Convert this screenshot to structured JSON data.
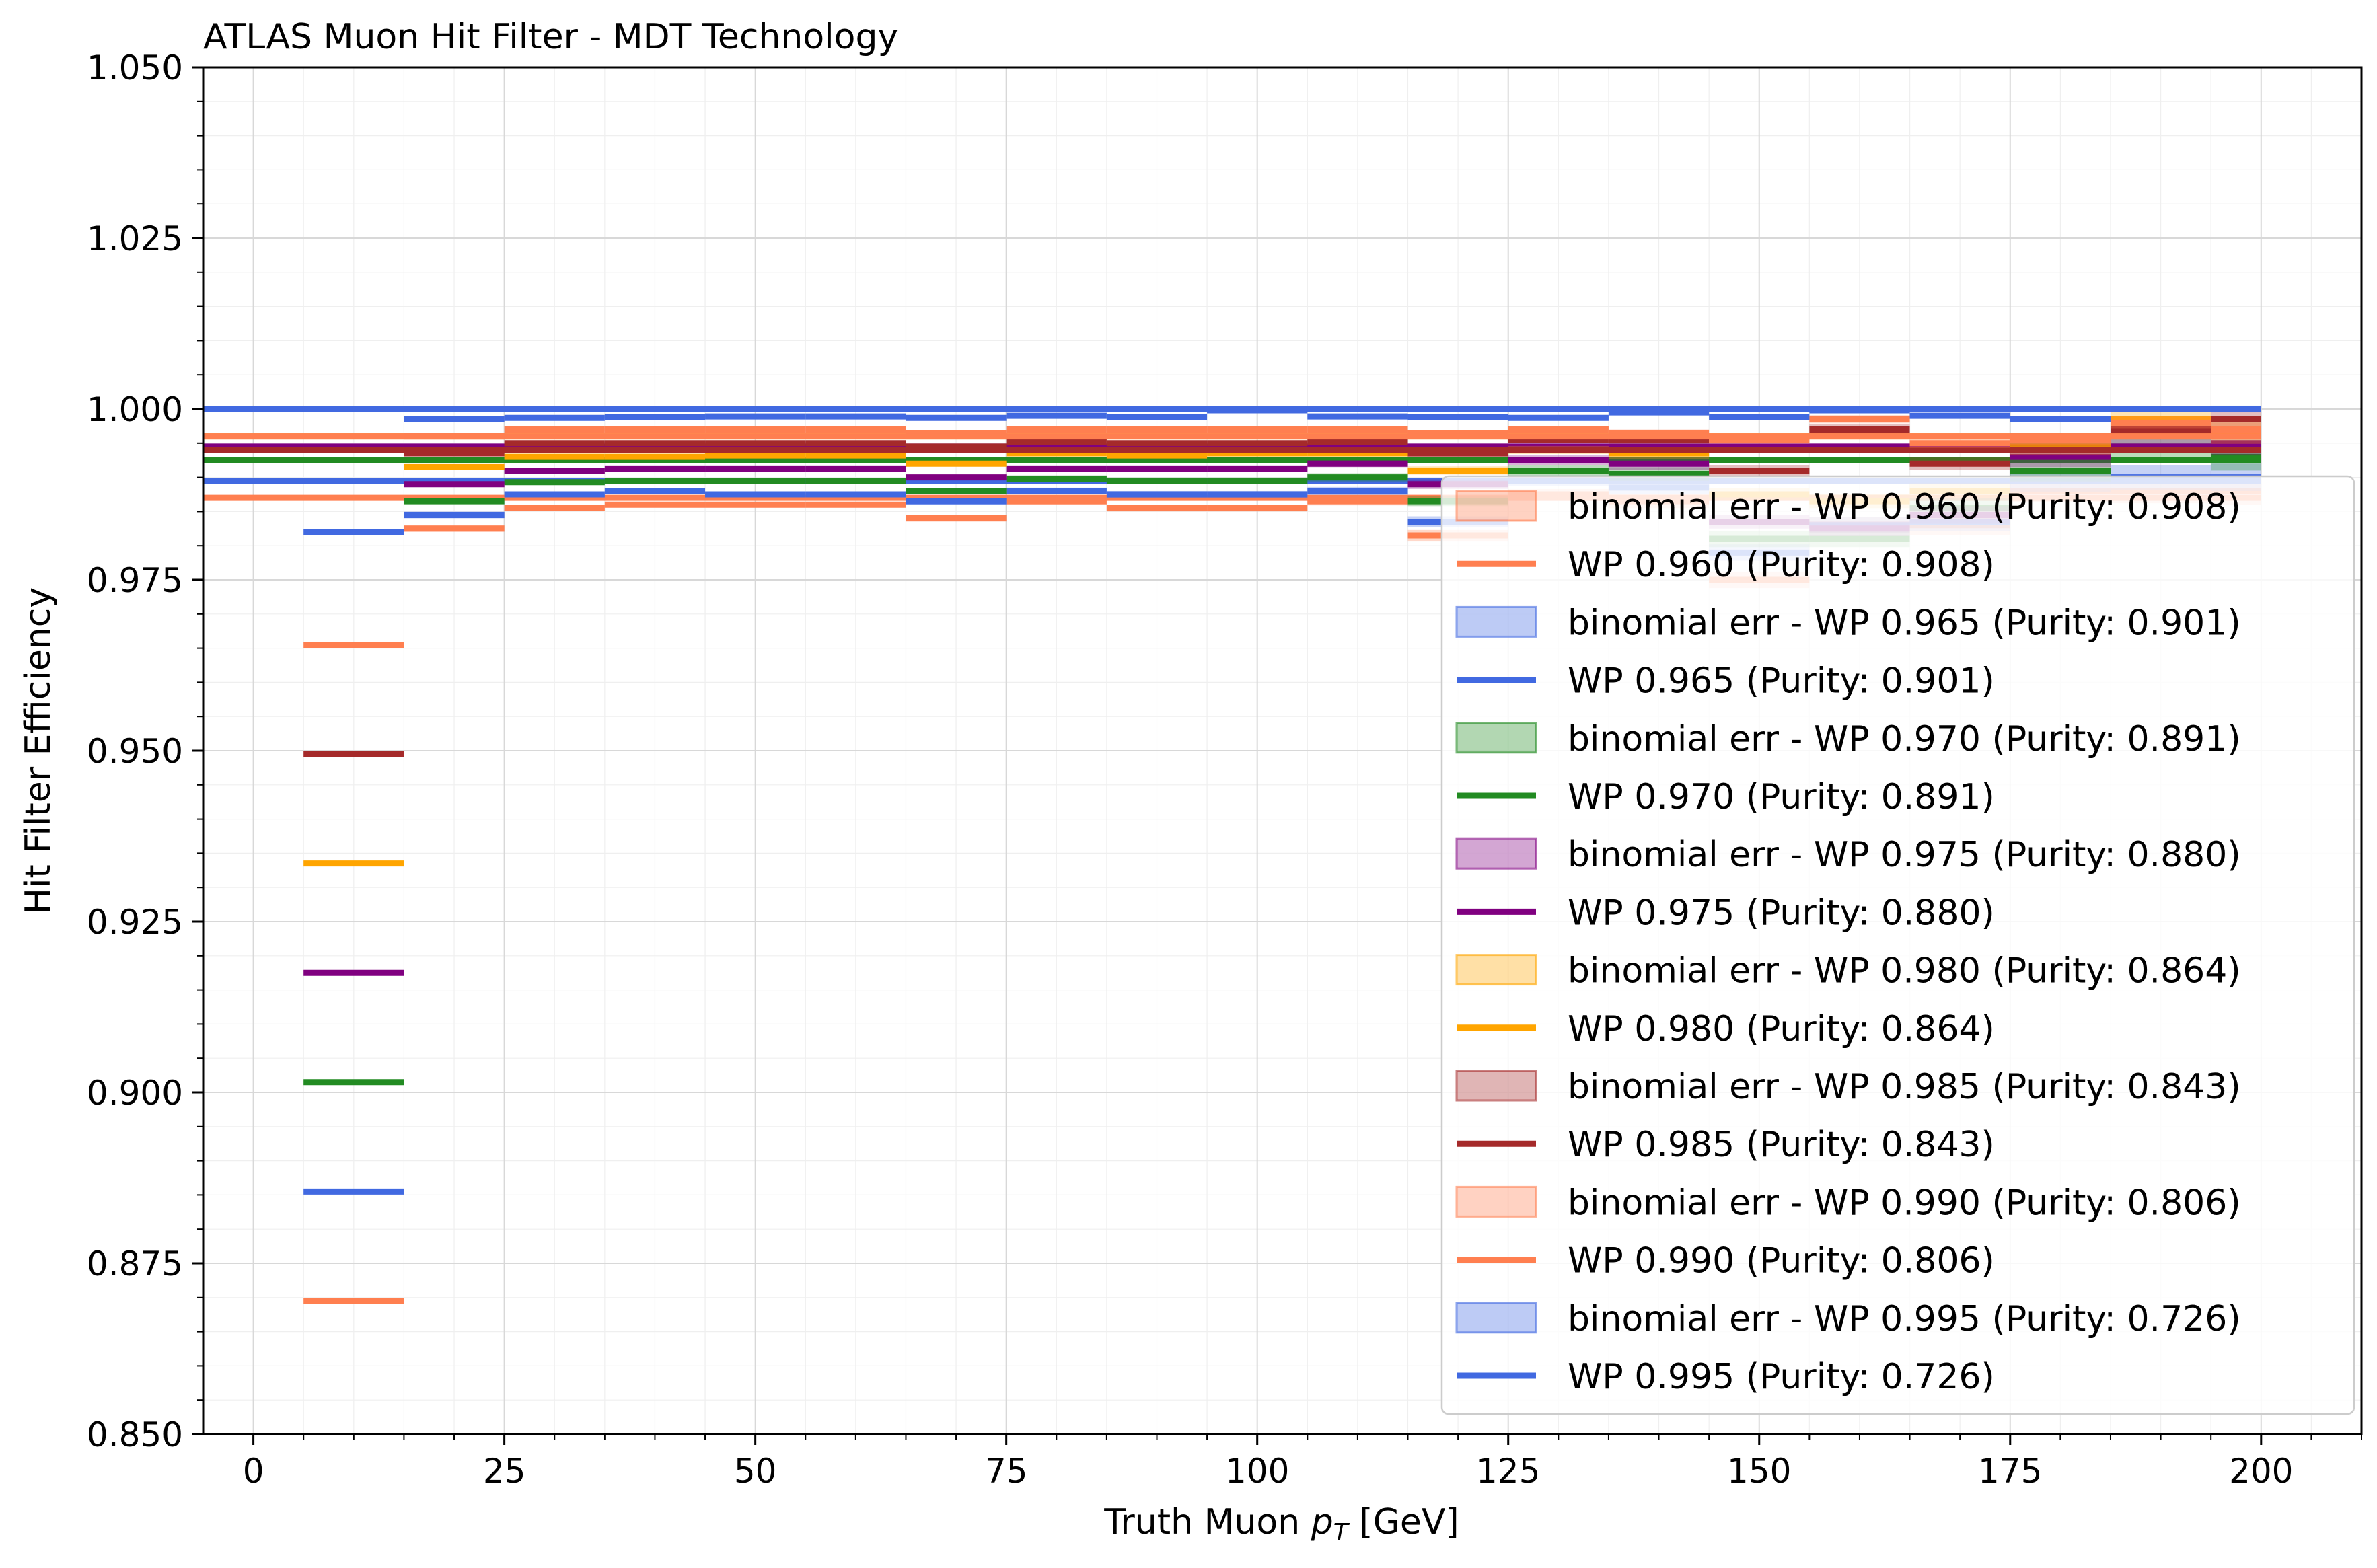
{
  "chart_data": {
    "type": "line",
    "title": "ATLAS Muon Hit Filter - MDT Technology",
    "xlabel_main": "Truth Muon ",
    "xlabel_math": "p",
    "xlabel_sub": "T",
    "xlabel_unit": " [GeV]",
    "ylabel": "Hit Filter Efficiency",
    "xlim": [
      -5,
      210
    ],
    "ylim": [
      0.85,
      1.05
    ],
    "xticks": [
      0,
      25,
      50,
      75,
      100,
      125,
      150,
      175,
      200
    ],
    "xtick_labels": [
      "0",
      "25",
      "50",
      "75",
      "100",
      "125",
      "150",
      "175",
      "200"
    ],
    "yticks": [
      0.85,
      0.875,
      0.9,
      0.925,
      0.95,
      0.975,
      1.0,
      1.025,
      1.05
    ],
    "ytick_labels": [
      "0.850",
      "0.875",
      "0.900",
      "0.925",
      "0.950",
      "0.975",
      "1.000",
      "1.025",
      "1.050"
    ],
    "grid": true,
    "legend_position": "bottom-right",
    "bin_edges": [
      5,
      15,
      25,
      35,
      45,
      55,
      65,
      75,
      85,
      95,
      105,
      115,
      125,
      135,
      145,
      155,
      165,
      175,
      185,
      195,
      200
    ],
    "series": [
      {
        "name": "WP 0.960 (Purity: 0.908)",
        "err_label": "binomial err - WP 0.960 (Purity: 0.908)",
        "color": "#ff7f50",
        "values": [
          0.8695,
          0.9825,
          0.9855,
          0.986,
          0.986,
          0.986,
          0.984,
          0.9865,
          0.9855,
          0.9855,
          0.9865,
          0.9815,
          0.9875,
          0.9865,
          0.975,
          0.983,
          0.983,
          0.988,
          0.988,
          0.988,
          0.987
        ],
        "err": [
          0.0,
          0.0005,
          0.0004,
          0.0004,
          0.0004,
          0.0004,
          0.0005,
          0.0005,
          0.0005,
          0.0005,
          0.0006,
          0.0008,
          0.0008,
          0.001,
          0.0012,
          0.0012,
          0.0014,
          0.0016,
          0.0018,
          0.002,
          0.002
        ]
      },
      {
        "name": "WP 0.965 (Purity: 0.901)",
        "err_label": "binomial err - WP 0.965 (Purity: 0.901)",
        "color": "#4169e1",
        "values": [
          0.8855,
          0.9845,
          0.9875,
          0.988,
          0.9875,
          0.9875,
          0.9865,
          0.988,
          0.9875,
          0.9875,
          0.988,
          0.9835,
          0.9895,
          0.9885,
          0.979,
          0.983,
          0.9835,
          0.9895,
          0.99,
          0.99,
          0.9895
        ],
        "err": [
          0.0,
          0.0005,
          0.0004,
          0.0004,
          0.0004,
          0.0004,
          0.0005,
          0.0005,
          0.0005,
          0.0005,
          0.0006,
          0.0008,
          0.0008,
          0.001,
          0.0012,
          0.0012,
          0.0014,
          0.0016,
          0.0018,
          0.002,
          0.002
        ]
      },
      {
        "name": "WP 0.970 (Purity: 0.891)",
        "err_label": "binomial err - WP 0.970 (Purity: 0.891)",
        "color": "#228b22",
        "values": [
          0.9015,
          0.9865,
          0.9893,
          0.9895,
          0.9895,
          0.9895,
          0.988,
          0.9898,
          0.9895,
          0.9895,
          0.99,
          0.9865,
          0.991,
          0.9905,
          0.981,
          0.981,
          0.9855,
          0.991,
          0.9945,
          0.993,
          0.9925
        ],
        "err": [
          0.0,
          0.0004,
          0.0004,
          0.0004,
          0.0004,
          0.0004,
          0.0004,
          0.0005,
          0.0005,
          0.0005,
          0.0006,
          0.0007,
          0.0008,
          0.001,
          0.0012,
          0.0012,
          0.0014,
          0.0016,
          0.0018,
          0.002,
          0.002
        ]
      },
      {
        "name": "WP 0.975 (Purity: 0.880)",
        "err_label": "binomial err - WP 0.975 (Purity: 0.880)",
        "color": "#800080",
        "values": [
          0.9175,
          0.989,
          0.991,
          0.9912,
          0.9912,
          0.9912,
          0.99,
          0.9912,
          0.9912,
          0.9912,
          0.992,
          0.989,
          0.9925,
          0.992,
          0.9835,
          0.9825,
          0.9845,
          0.993,
          0.9965,
          0.995,
          0.9945
        ],
        "err": [
          0.0,
          0.0004,
          0.0003,
          0.0003,
          0.0003,
          0.0003,
          0.0004,
          0.0004,
          0.0004,
          0.0004,
          0.0005,
          0.0007,
          0.0007,
          0.0009,
          0.001,
          0.0011,
          0.0013,
          0.0015,
          0.0016,
          0.0018,
          0.0018
        ]
      },
      {
        "name": "WP 0.980 (Purity: 0.864)",
        "err_label": "binomial err - WP 0.980 (Purity: 0.864)",
        "color": "#ffa500",
        "values": [
          0.9335,
          0.9915,
          0.993,
          0.993,
          0.9932,
          0.9932,
          0.992,
          0.9935,
          0.9932,
          0.9935,
          0.9935,
          0.991,
          0.994,
          0.9935,
          0.9875,
          0.9865,
          0.988,
          0.9945,
          0.9985,
          0.9965,
          0.996
        ],
        "err": [
          0.0,
          0.0003,
          0.0003,
          0.0003,
          0.0003,
          0.0003,
          0.0003,
          0.0003,
          0.0003,
          0.0003,
          0.0004,
          0.0006,
          0.0006,
          0.0008,
          0.0009,
          0.001,
          0.0011,
          0.0013,
          0.0014,
          0.0016,
          0.0016
        ]
      },
      {
        "name": "WP 0.985 (Purity: 0.843)",
        "err_label": "binomial err - WP 0.985 (Purity: 0.843)",
        "color": "#a52a2a",
        "values": [
          0.9495,
          0.9935,
          0.995,
          0.995,
          0.995,
          0.995,
          0.9945,
          0.9952,
          0.995,
          0.995,
          0.9952,
          0.9935,
          0.9955,
          0.9955,
          0.991,
          0.997,
          0.992,
          0.9955,
          0.997,
          0.9985,
          0.994
        ],
        "err": [
          0.0,
          0.0003,
          0.0002,
          0.0002,
          0.0002,
          0.0002,
          0.0003,
          0.0003,
          0.0003,
          0.0003,
          0.0003,
          0.0005,
          0.0005,
          0.0006,
          0.0008,
          0.0008,
          0.0009,
          0.001,
          0.0012,
          0.0013,
          0.0013
        ]
      },
      {
        "name": "WP 0.990 (Purity: 0.806)",
        "err_label": "binomial err - WP 0.990 (Purity: 0.806)",
        "color": "#ff7f50",
        "values": [
          0.9655,
          0.996,
          0.997,
          0.997,
          0.997,
          0.997,
          0.9965,
          0.997,
          0.997,
          0.997,
          0.997,
          0.9965,
          0.997,
          0.9965,
          0.9955,
          0.9985,
          0.995,
          0.9955,
          0.998,
          0.997,
          0.996
        ],
        "err": [
          0.0,
          0.0002,
          0.0002,
          0.0002,
          0.0002,
          0.0002,
          0.0002,
          0.0002,
          0.0002,
          0.0002,
          0.0003,
          0.0004,
          0.0004,
          0.0005,
          0.0006,
          0.0006,
          0.0007,
          0.0008,
          0.0009,
          0.001,
          0.001
        ]
      },
      {
        "name": "WP 0.995 (Purity: 0.726)",
        "err_label": "binomial err - WP 0.995 (Purity: 0.726)",
        "color": "#4169e1",
        "values": [
          0.982,
          0.9985,
          0.9987,
          0.9988,
          0.9989,
          0.9989,
          0.9987,
          0.999,
          0.9988,
          0.9998,
          0.9989,
          0.9988,
          0.9987,
          0.9995,
          0.9988,
          0.9998,
          0.999,
          0.9985,
          1.0,
          1.0,
          1.0
        ],
        "err": [
          0.0,
          0.0001,
          0.0001,
          0.0001,
          0.0001,
          0.0001,
          0.0001,
          0.0001,
          0.0001,
          0.0001,
          0.0001,
          0.0002,
          0.0002,
          0.0002,
          0.0003,
          0.0003,
          0.0003,
          0.0004,
          0.0004,
          0.0005,
          0.0005
        ]
      }
    ]
  }
}
